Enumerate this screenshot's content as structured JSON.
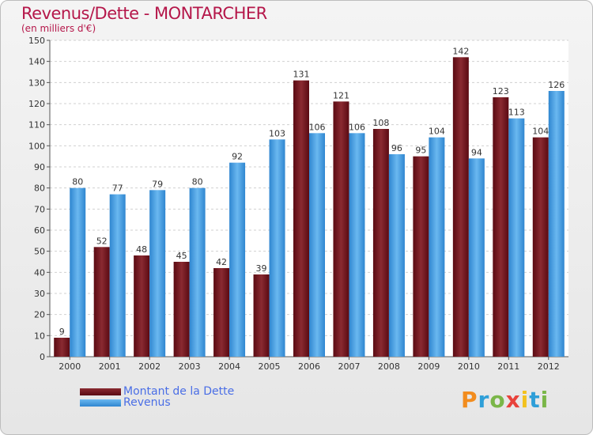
{
  "header": {
    "title": "Revenus/Dette - MONTARCHER",
    "subtitle": "(en milliers d'€)"
  },
  "legend": [
    {
      "label": "Montant de la Dette",
      "color": "#6b0f17"
    },
    {
      "label": "Revenus",
      "color": "#4ea7ea"
    }
  ],
  "logo": {
    "letters": [
      "P",
      "r",
      "o",
      "x",
      "i",
      "t",
      "i"
    ],
    "colors": [
      "#f28c1e",
      "#2f9fd8",
      "#7ab648",
      "#e8423b",
      "#f2c21e",
      "#2f9fd8",
      "#7ab648"
    ]
  },
  "chart_data": {
    "type": "bar",
    "categories": [
      "2000",
      "2001",
      "2002",
      "2003",
      "2004",
      "2005",
      "2006",
      "2007",
      "2008",
      "2009",
      "2010",
      "2011",
      "2012"
    ],
    "series": [
      {
        "name": "Montant de la Dette",
        "values": [
          9,
          52,
          48,
          45,
          42,
          39,
          131,
          121,
          108,
          95,
          142,
          123,
          104
        ],
        "color": "#6b0f17"
      },
      {
        "name": "Revenus",
        "values": [
          80,
          77,
          79,
          80,
          92,
          103,
          106,
          106,
          96,
          104,
          94,
          113,
          126
        ],
        "color": "#4ea7ea"
      }
    ],
    "ylim": [
      0,
      150
    ],
    "yticks": [
      0,
      10,
      20,
      30,
      40,
      50,
      60,
      70,
      80,
      90,
      100,
      110,
      120,
      130,
      140,
      150
    ],
    "grid": true
  }
}
